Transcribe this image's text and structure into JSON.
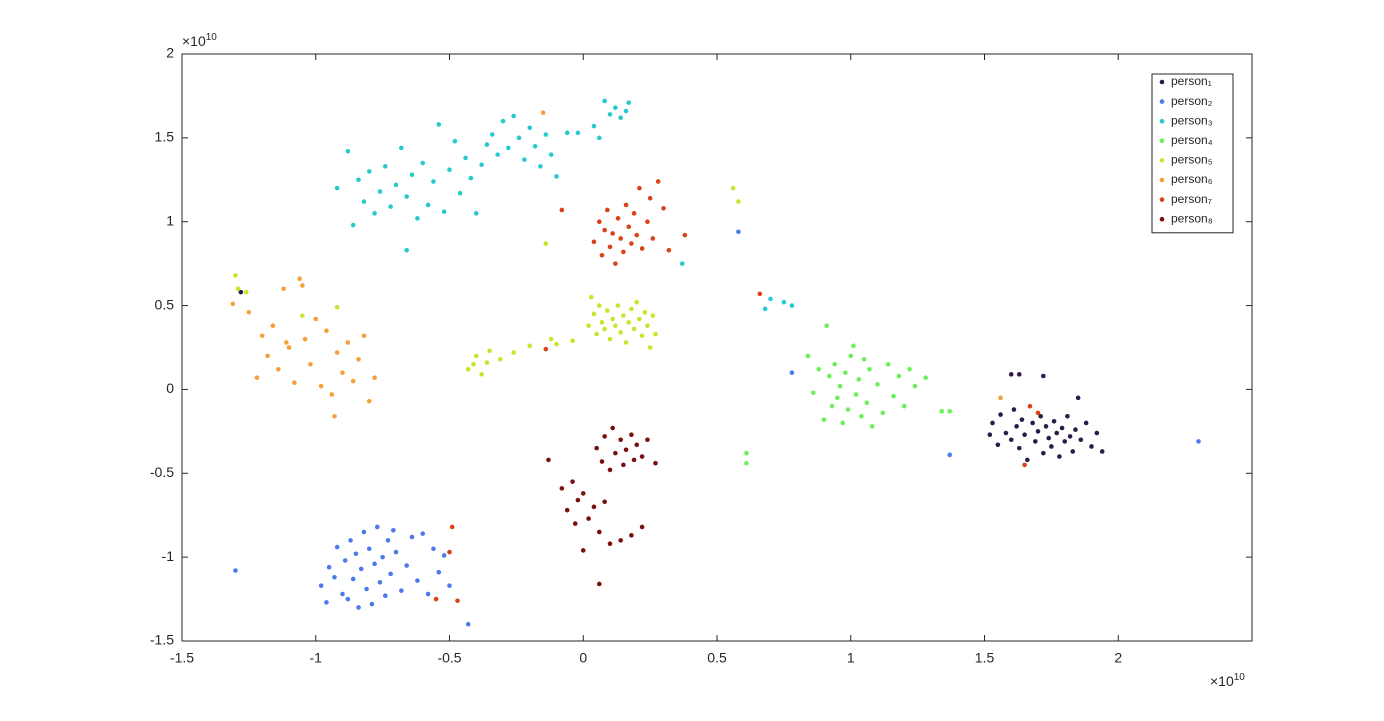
{
  "chart_data": {
    "type": "scatter",
    "legend": "northeast",
    "grid": false,
    "xlim": [
      -1.5,
      2.5
    ],
    "ylim": [
      -1.5,
      2
    ],
    "xticks": [
      -1.5,
      -1,
      -0.5,
      0,
      0.5,
      1,
      1.5,
      2
    ],
    "yticks": [
      -1.5,
      -1,
      -0.5,
      0,
      0.5,
      1,
      1.5,
      2
    ],
    "x_multiplier": {
      "base": "×10",
      "power": "10"
    },
    "y_multiplier": {
      "base": "×10",
      "power": "10"
    },
    "series": [
      {
        "name": "person₁",
        "color": "#2e1a47",
        "x": [
          1.52,
          1.53,
          1.55,
          1.56,
          1.58,
          1.6,
          1.61,
          1.62,
          1.63,
          1.64,
          1.65,
          1.66,
          1.68,
          1.69,
          1.7,
          1.71,
          1.72,
          1.73,
          1.74,
          1.75,
          1.76,
          1.77,
          1.78,
          1.79,
          1.8,
          1.81,
          1.82,
          1.83,
          1.84,
          1.85,
          1.86,
          1.88,
          1.9,
          1.92,
          1.94,
          1.6,
          1.63,
          1.72,
          -1.28
        ],
        "y": [
          -0.27,
          -0.2,
          -0.33,
          -0.15,
          -0.26,
          -0.3,
          -0.12,
          -0.22,
          -0.35,
          -0.18,
          -0.27,
          -0.42,
          -0.2,
          -0.31,
          -0.25,
          -0.16,
          -0.38,
          -0.22,
          -0.29,
          -0.34,
          -0.19,
          -0.26,
          -0.4,
          -0.23,
          -0.31,
          -0.16,
          -0.28,
          -0.37,
          -0.24,
          -0.05,
          -0.3,
          -0.2,
          -0.34,
          -0.26,
          -0.37,
          0.09,
          0.09,
          0.08,
          0.58
        ]
      },
      {
        "name": "person₂",
        "color": "#4a7be8",
        "x": [
          -0.98,
          -0.96,
          -0.95,
          -0.93,
          -0.92,
          -0.9,
          -0.89,
          -0.88,
          -0.87,
          -0.86,
          -0.85,
          -0.84,
          -0.83,
          -0.82,
          -0.81,
          -0.8,
          -0.79,
          -0.78,
          -0.77,
          -0.76,
          -0.75,
          -0.74,
          -0.73,
          -0.72,
          -0.71,
          -0.7,
          -0.68,
          -0.66,
          -0.64,
          -0.62,
          -0.6,
          -0.58,
          -0.56,
          -0.54,
          -0.52,
          -0.5,
          -1.3,
          -0.43,
          0.58,
          0.78,
          1.37,
          2.3
        ],
        "y": [
          -1.17,
          -1.27,
          -1.06,
          -1.12,
          -0.94,
          -1.22,
          -1.02,
          -1.25,
          -0.9,
          -1.13,
          -0.98,
          -1.3,
          -1.07,
          -0.85,
          -1.19,
          -0.95,
          -1.28,
          -1.04,
          -0.82,
          -1.15,
          -1.0,
          -1.23,
          -0.9,
          -1.1,
          -0.84,
          -0.97,
          -1.2,
          -1.05,
          -0.88,
          -1.14,
          -0.86,
          -1.22,
          -0.95,
          -1.09,
          -0.99,
          -1.17,
          -1.08,
          -1.4,
          0.94,
          0.1,
          -0.39,
          -0.31
        ]
      },
      {
        "name": "person₃",
        "color": "#28c8d0",
        "x": [
          -0.92,
          -0.88,
          -0.86,
          -0.84,
          -0.82,
          -0.8,
          -0.78,
          -0.76,
          -0.74,
          -0.72,
          -0.7,
          -0.68,
          -0.66,
          -0.64,
          -0.62,
          -0.6,
          -0.58,
          -0.56,
          -0.54,
          -0.52,
          -0.5,
          -0.48,
          -0.46,
          -0.44,
          -0.42,
          -0.4,
          -0.38,
          -0.36,
          -0.34,
          -0.32,
          -0.3,
          -0.28,
          -0.26,
          -0.24,
          -0.22,
          -0.2,
          -0.18,
          -0.16,
          -0.14,
          -0.12,
          -0.1,
          -0.06,
          -0.02,
          0.04,
          0.06,
          0.08,
          0.1,
          0.12,
          0.14,
          0.16,
          0.17,
          0.37,
          0.68,
          0.7,
          0.75,
          0.78,
          -0.66
        ],
        "y": [
          1.2,
          1.42,
          0.98,
          1.25,
          1.12,
          1.3,
          1.05,
          1.18,
          1.33,
          1.09,
          1.22,
          1.44,
          1.15,
          1.28,
          1.02,
          1.35,
          1.1,
          1.24,
          1.58,
          1.06,
          1.31,
          1.48,
          1.17,
          1.38,
          1.26,
          1.05,
          1.34,
          1.46,
          1.52,
          1.4,
          1.6,
          1.44,
          1.63,
          1.5,
          1.37,
          1.56,
          1.45,
          1.33,
          1.52,
          1.4,
          1.27,
          1.53,
          1.53,
          1.57,
          1.5,
          1.72,
          1.64,
          1.68,
          1.62,
          1.66,
          1.71,
          0.75,
          0.48,
          0.54,
          0.52,
          0.5,
          0.83
        ]
      },
      {
        "name": "person₄",
        "color": "#6cf05a",
        "x": [
          0.86,
          0.88,
          0.9,
          0.92,
          0.93,
          0.94,
          0.95,
          0.96,
          0.97,
          0.98,
          0.99,
          1.0,
          1.01,
          1.02,
          1.03,
          1.04,
          1.05,
          1.06,
          1.07,
          1.08,
          1.1,
          1.12,
          1.14,
          1.16,
          1.18,
          1.2,
          1.22,
          1.24,
          1.28,
          1.34,
          1.37,
          0.61,
          0.61,
          0.91,
          0.84
        ],
        "y": [
          -0.02,
          0.12,
          -0.18,
          0.08,
          -0.1,
          0.15,
          -0.05,
          0.02,
          -0.2,
          0.1,
          -0.12,
          0.2,
          0.26,
          -0.03,
          0.06,
          -0.16,
          0.18,
          -0.08,
          0.12,
          -0.22,
          0.03,
          -0.14,
          0.15,
          -0.04,
          0.08,
          -0.1,
          0.12,
          0.02,
          0.07,
          -0.13,
          -0.13,
          -0.38,
          -0.44,
          0.38,
          0.2
        ]
      },
      {
        "name": "person₅",
        "color": "#cce32e",
        "x": [
          0.02,
          0.03,
          0.04,
          0.05,
          0.06,
          0.07,
          0.08,
          0.09,
          0.1,
          0.11,
          0.12,
          0.13,
          0.14,
          0.15,
          0.16,
          0.17,
          0.18,
          0.19,
          0.2,
          0.21,
          0.22,
          0.23,
          0.24,
          0.25,
          0.26,
          0.27,
          -0.43,
          -0.41,
          -0.4,
          -0.38,
          -0.36,
          -0.35,
          -0.31,
          -0.26,
          -0.2,
          -0.12,
          -0.1,
          -0.04,
          0.56,
          0.58,
          -1.3,
          -1.29,
          -1.26,
          -0.14,
          -0.92,
          -1.05
        ],
        "y": [
          0.38,
          0.55,
          0.45,
          0.33,
          0.5,
          0.4,
          0.36,
          0.47,
          0.3,
          0.42,
          0.38,
          0.5,
          0.34,
          0.44,
          0.28,
          0.4,
          0.48,
          0.36,
          0.52,
          0.42,
          0.32,
          0.46,
          0.38,
          0.25,
          0.44,
          0.33,
          0.12,
          0.15,
          0.2,
          0.09,
          0.16,
          0.23,
          0.18,
          0.22,
          0.26,
          0.3,
          0.27,
          0.29,
          1.2,
          1.12,
          0.68,
          0.6,
          0.58,
          0.87,
          0.49,
          0.44
        ]
      },
      {
        "name": "person₆",
        "color": "#f5a03a",
        "x": [
          -1.25,
          -1.22,
          -1.2,
          -1.18,
          -1.16,
          -1.14,
          -1.12,
          -1.1,
          -1.08,
          -1.06,
          -1.04,
          -1.02,
          -1.0,
          -0.98,
          -0.96,
          -0.94,
          -0.92,
          -0.9,
          -0.88,
          -0.86,
          -0.84,
          -0.82,
          -0.8,
          -0.78,
          -1.31,
          -1.05,
          -1.11,
          -0.93,
          -0.15,
          1.56
        ],
        "y": [
          0.46,
          0.07,
          0.32,
          0.2,
          0.38,
          0.12,
          0.6,
          0.25,
          0.04,
          0.66,
          0.3,
          0.15,
          0.42,
          0.02,
          0.35,
          -0.03,
          0.22,
          0.1,
          0.28,
          0.05,
          0.18,
          0.32,
          -0.07,
          0.07,
          0.51,
          0.62,
          0.28,
          -0.16,
          1.65,
          -0.05
        ]
      },
      {
        "name": "person₇",
        "color": "#d9421a",
        "x": [
          0.04,
          0.06,
          0.07,
          0.08,
          0.09,
          0.1,
          0.11,
          0.12,
          0.13,
          0.14,
          0.15,
          0.16,
          0.17,
          0.18,
          0.19,
          0.2,
          0.21,
          0.22,
          0.24,
          0.25,
          0.26,
          0.28,
          0.3,
          0.32,
          0.38,
          -0.08,
          0.66,
          -0.14,
          -0.49,
          -0.5,
          -0.55,
          -0.47,
          1.65,
          1.7,
          1.67
        ],
        "y": [
          0.88,
          1.0,
          0.8,
          0.95,
          1.07,
          0.85,
          0.93,
          0.75,
          1.02,
          0.9,
          0.82,
          1.1,
          0.97,
          0.87,
          1.05,
          0.92,
          1.2,
          0.84,
          1.0,
          1.14,
          0.9,
          1.24,
          1.08,
          0.83,
          0.92,
          1.07,
          0.57,
          0.24,
          -0.82,
          -0.97,
          -1.25,
          -1.26,
          -0.45,
          -0.14,
          -0.1
        ]
      },
      {
        "name": "person₈",
        "color": "#7a0f0f",
        "x": [
          0.05,
          0.07,
          0.08,
          0.1,
          0.11,
          0.12,
          0.14,
          0.15,
          0.16,
          0.18,
          0.19,
          0.2,
          0.22,
          0.24,
          0.27,
          -0.08,
          -0.06,
          -0.04,
          -0.03,
          -0.02,
          0.0,
          0.02,
          0.04,
          0.06,
          0.08,
          0.1,
          0.14,
          0.18,
          0.22,
          -0.13,
          0.06,
          0.0
        ],
        "y": [
          -0.35,
          -0.43,
          -0.28,
          -0.48,
          -0.23,
          -0.38,
          -0.3,
          -0.45,
          -0.36,
          -0.27,
          -0.42,
          -0.33,
          -0.4,
          -0.3,
          -0.44,
          -0.59,
          -0.72,
          -0.55,
          -0.8,
          -0.66,
          -0.62,
          -0.77,
          -0.7,
          -0.85,
          -0.67,
          -0.92,
          -0.9,
          -0.87,
          -0.82,
          -0.42,
          -1.16,
          -0.96
        ]
      }
    ]
  }
}
